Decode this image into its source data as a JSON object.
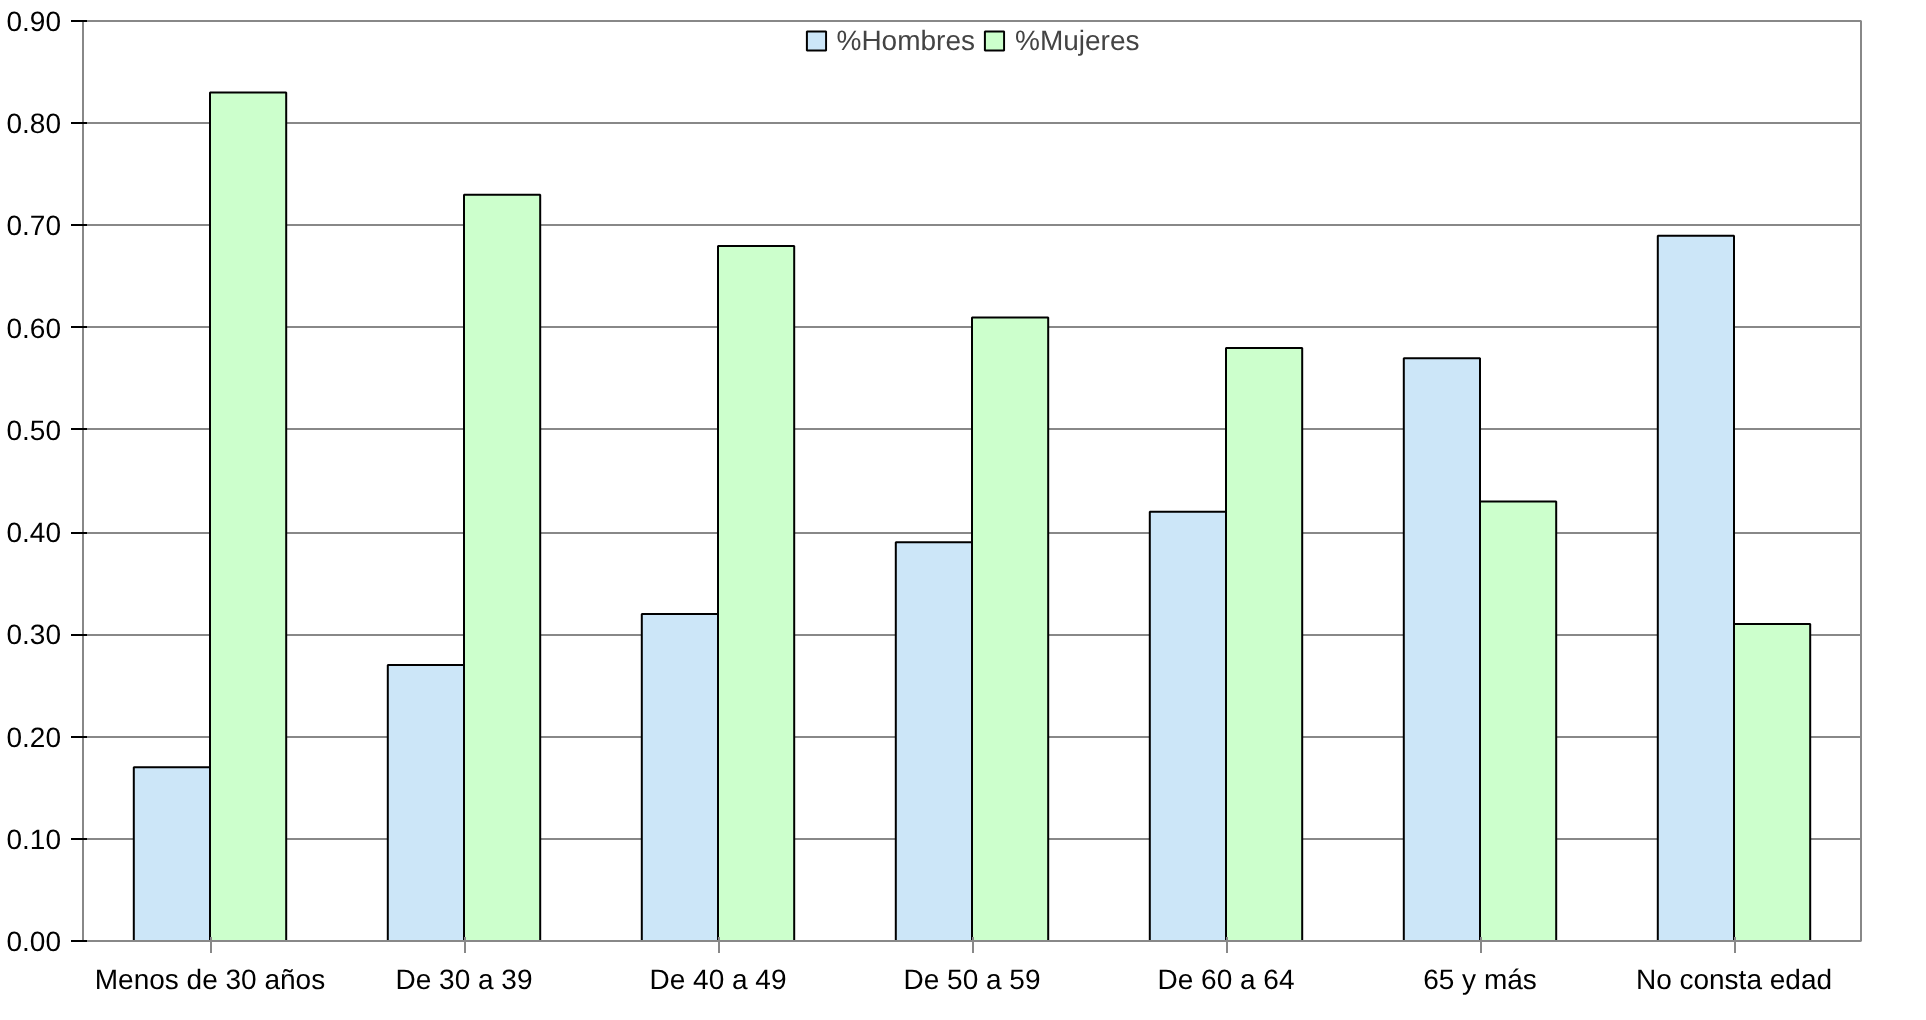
{
  "chart_data": {
    "type": "bar",
    "categories": [
      "Menos de 30 años",
      "De 30 a 39",
      "De 40 a 49",
      "De 50 a 59",
      "De 60 a 64",
      "65 y más",
      "No consta edad"
    ],
    "series": [
      {
        "name": "%Hombres",
        "color": "#cce6f8",
        "values": [
          0.17,
          0.27,
          0.32,
          0.39,
          0.42,
          0.57,
          0.69
        ]
      },
      {
        "name": "%Mujeres",
        "color": "#ccffcc",
        "values": [
          0.83,
          0.73,
          0.68,
          0.61,
          0.58,
          0.43,
          0.31
        ]
      }
    ],
    "ylim": [
      0,
      0.9
    ],
    "yticks": [
      {
        "value": 0,
        "label": "0.00"
      },
      {
        "value": 0.1,
        "label": "0.10"
      },
      {
        "value": 0.2,
        "label": "0.20"
      },
      {
        "value": 0.3,
        "label": "0.30"
      },
      {
        "value": 0.4,
        "label": "0.40"
      },
      {
        "value": 0.5,
        "label": "0.50"
      },
      {
        "value": 0.6,
        "label": "0.60"
      },
      {
        "value": 0.7,
        "label": "0.70"
      },
      {
        "value": 0.8,
        "label": "0.80"
      },
      {
        "value": 0.9,
        "label": "0.90"
      }
    ],
    "grid": "y",
    "legend": "top"
  }
}
